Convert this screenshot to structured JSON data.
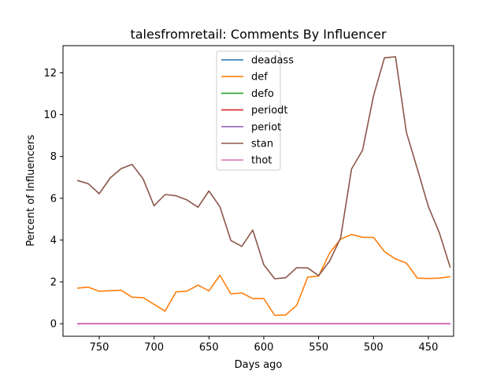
{
  "chart_data": {
    "type": "line",
    "title": "talesfromretail: Comments By Influencer",
    "xlabel": "Days ago",
    "ylabel": "Percent of Influencers",
    "x_axis_reversed": true,
    "xlim": [
      783,
      427
    ],
    "ylim": [
      -0.6,
      13.3
    ],
    "xticks": [
      750,
      700,
      650,
      600,
      550,
      500,
      450
    ],
    "yticks": [
      0,
      2,
      4,
      6,
      8,
      10,
      12
    ],
    "legend_position": "top-center",
    "grid": false,
    "x": [
      770,
      760,
      750,
      740,
      730,
      720,
      710,
      700,
      690,
      680,
      670,
      660,
      650,
      640,
      630,
      620,
      610,
      600,
      590,
      580,
      570,
      560,
      550,
      540,
      530,
      520,
      510,
      500,
      490,
      480,
      470,
      460,
      450,
      440,
      430
    ],
    "series": [
      {
        "name": "deadass",
        "color": "#1f77b4",
        "values": [
          0,
          0,
          0,
          0,
          0,
          0,
          0,
          0,
          0,
          0,
          0,
          0,
          0,
          0,
          0,
          0,
          0,
          0,
          0,
          0,
          0,
          0,
          0,
          0,
          0,
          0,
          0,
          0,
          0,
          0,
          0,
          0,
          0,
          0,
          0
        ]
      },
      {
        "name": "def",
        "color": "#ff7f0e",
        "values": [
          1.7,
          1.75,
          1.55,
          1.58,
          1.6,
          1.27,
          1.25,
          0.93,
          0.6,
          1.52,
          1.56,
          1.85,
          1.57,
          2.32,
          1.43,
          1.47,
          1.2,
          1.2,
          0.4,
          0.42,
          0.88,
          2.23,
          2.28,
          3.38,
          4.05,
          4.27,
          4.13,
          4.13,
          3.45,
          3.1,
          2.9,
          2.18,
          2.16,
          2.18,
          2.25
        ]
      },
      {
        "name": "defo",
        "color": "#2ca02c",
        "values": [
          0,
          0,
          0,
          0,
          0,
          0,
          0,
          0,
          0,
          0,
          0,
          0,
          0,
          0,
          0,
          0,
          0,
          0,
          0,
          0,
          0,
          0,
          0,
          0,
          0,
          0,
          0,
          0,
          0,
          0,
          0,
          0,
          0,
          0,
          0
        ]
      },
      {
        "name": "periodt",
        "color": "#d62728",
        "values": [
          0,
          0,
          0,
          0,
          0,
          0,
          0,
          0,
          0,
          0,
          0,
          0,
          0,
          0,
          0,
          0,
          0,
          0,
          0,
          0,
          0,
          0,
          0,
          0,
          0,
          0,
          0,
          0,
          0,
          0,
          0,
          0,
          0,
          0,
          0
        ]
      },
      {
        "name": "periot",
        "color": "#9467bd",
        "values": [
          0,
          0,
          0,
          0,
          0,
          0,
          0,
          0,
          0,
          0,
          0,
          0,
          0,
          0,
          0,
          0,
          0,
          0,
          0,
          0,
          0,
          0,
          0,
          0,
          0,
          0,
          0,
          0,
          0,
          0,
          0,
          0,
          0,
          0,
          0
        ]
      },
      {
        "name": "stan",
        "color": "#8c564b",
        "values": [
          6.85,
          6.7,
          6.22,
          6.97,
          7.42,
          7.62,
          6.93,
          5.64,
          6.18,
          6.12,
          5.92,
          5.57,
          6.35,
          5.6,
          3.98,
          3.7,
          4.48,
          2.82,
          2.15,
          2.2,
          2.68,
          2.67,
          2.3,
          3.0,
          4.1,
          7.4,
          8.3,
          10.9,
          12.72,
          12.77,
          9.15,
          7.4,
          5.6,
          4.35,
          2.68
        ]
      },
      {
        "name": "thot",
        "color": "#e377c2",
        "values": [
          0,
          0,
          0,
          0,
          0,
          0,
          0,
          0,
          0,
          0,
          0,
          0,
          0,
          0,
          0,
          0,
          0,
          0,
          0,
          0,
          0,
          0,
          0,
          0,
          0,
          0,
          0,
          0,
          0,
          0,
          0,
          0,
          0,
          0,
          0
        ]
      }
    ]
  }
}
